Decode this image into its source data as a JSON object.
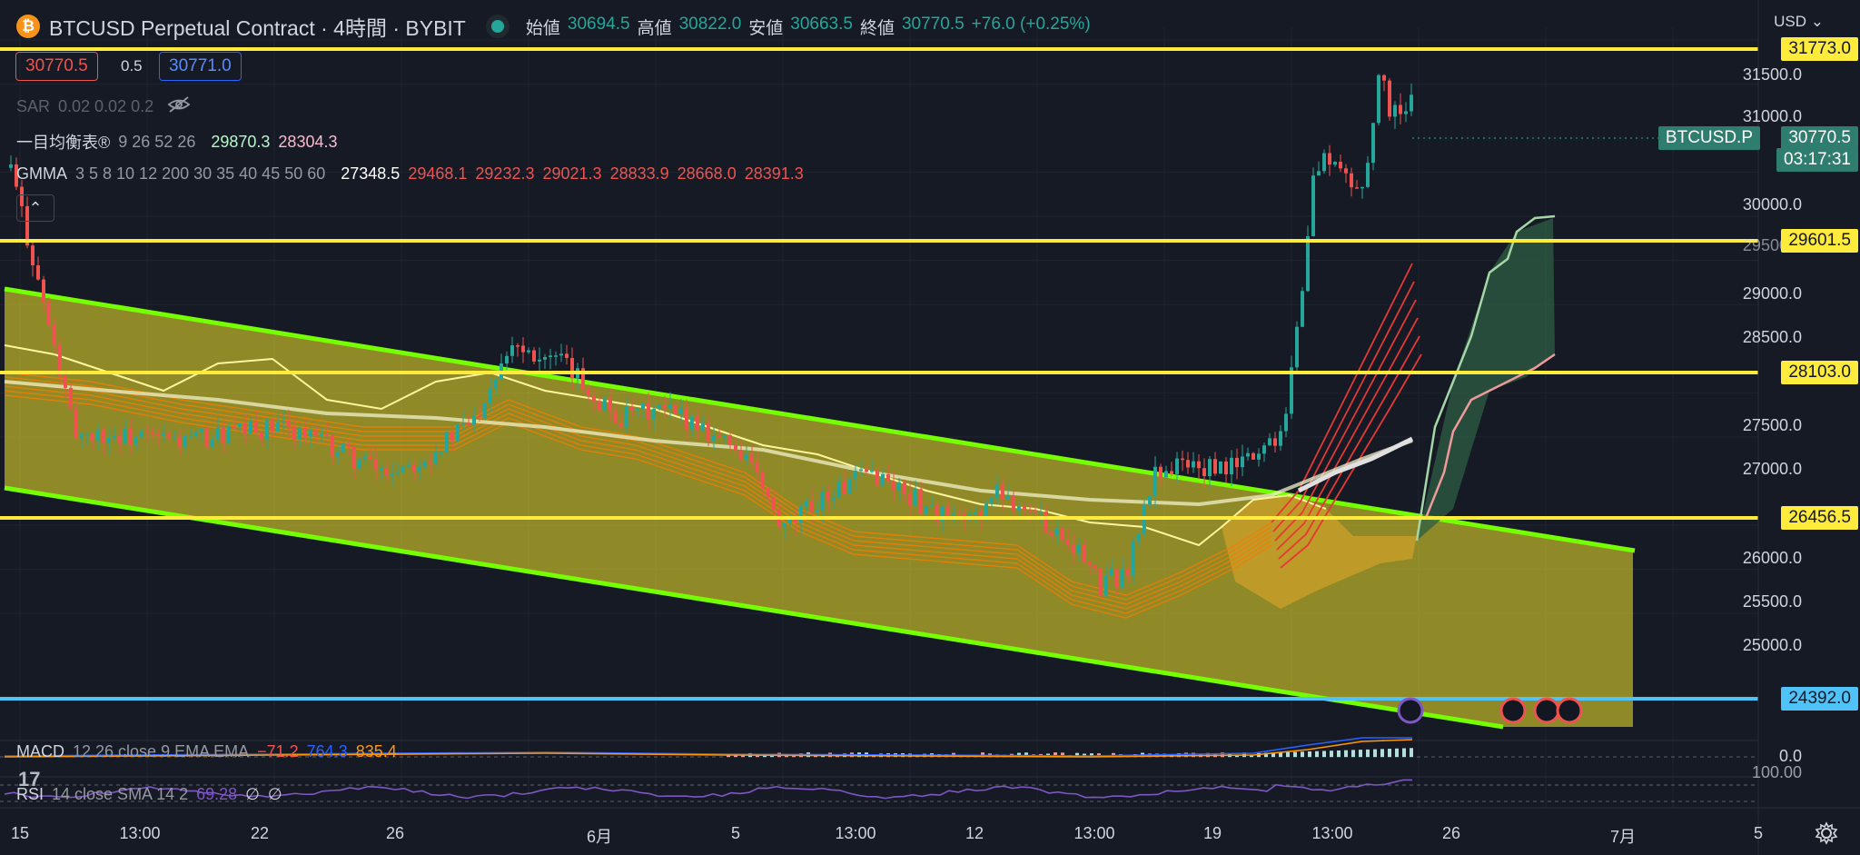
{
  "symbol": {
    "icon": "bitcoin-icon",
    "title": "BTCUSD Perpetual Contract · 4時間 · BYBIT"
  },
  "ohlc": {
    "open_label": "始値",
    "open": "30694.5",
    "high_label": "高値",
    "high": "30822.0",
    "low_label": "安値",
    "low": "30663.5",
    "close_label": "終値",
    "close": "30770.5",
    "change": "+76.0 (+0.25%)"
  },
  "currency": "USD",
  "trade": {
    "sell": "30770.5",
    "spread": "0.5",
    "buy": "30771.0"
  },
  "indicators": {
    "sar": {
      "name": "SAR",
      "params": "0.02 0.02 0.2"
    },
    "ichimoku": {
      "name": "一目均衡表®",
      "params": "9 26 52 26",
      "v1": "29870.3",
      "v2": "28304.3"
    },
    "gmma": {
      "name": "GMMA",
      "params": "3 5 8 10 12 200 30 35 40 45 50 60",
      "values": [
        "27348.5",
        "29468.1",
        "29232.3",
        "29021.3",
        "28833.9",
        "28668.0",
        "28391.3"
      ]
    },
    "macd": {
      "name": "MACD",
      "params": "12 26 close 9 EMA EMA",
      "values": [
        "−71.2",
        "764.3",
        "835.4"
      ]
    },
    "rsi": {
      "name": "RSI",
      "params": "14 close SMA 14 2",
      "value": "69.28",
      "extra": [
        "∅",
        "∅"
      ]
    }
  },
  "price_tags": {
    "symbol_tag": "BTCUSD.P",
    "last_price": "30770.5",
    "countdown": "03:17:31",
    "levels": [
      "31773.0",
      "29601.5",
      "28103.0",
      "26456.5",
      "24392.0"
    ]
  },
  "chart_data": {
    "type": "line",
    "series": [
      {
        "values": [
          30694.5,
          30822.0,
          30663.5,
          30770.5
        ]
      }
    ],
    "y_axis_ticks": [
      "31500.0",
      "31000.0",
      "30000.0",
      "29500.0",
      "29000.0",
      "28500.0",
      "27500.0",
      "27000.0",
      "26000.0",
      "25500.0",
      "25000.0"
    ],
    "x_axis_ticks": [
      "15",
      "13:00",
      "22",
      "26",
      "6月",
      "5",
      "13:00",
      "12",
      "13:00",
      "19",
      "13:00",
      "26",
      "7月",
      "5"
    ],
    "horizontal_levels": [
      31773.0,
      29601.5,
      28103.0,
      26456.5,
      24392.0
    ],
    "ylim": [
      24392.0,
      31773.0
    ],
    "macd_ticks": [
      "0.0"
    ],
    "rsi_ticks": [
      "100.00"
    ]
  },
  "colors": {
    "background": "#161a25",
    "level_line": "#ffeb3b",
    "channel_line": "#76ff03",
    "channel_fill": "#c8c02a",
    "support_line": "#4fc3f7",
    "bull": "#26a69a",
    "bear": "#ef5350",
    "tag_green": "#2e7d6e"
  }
}
